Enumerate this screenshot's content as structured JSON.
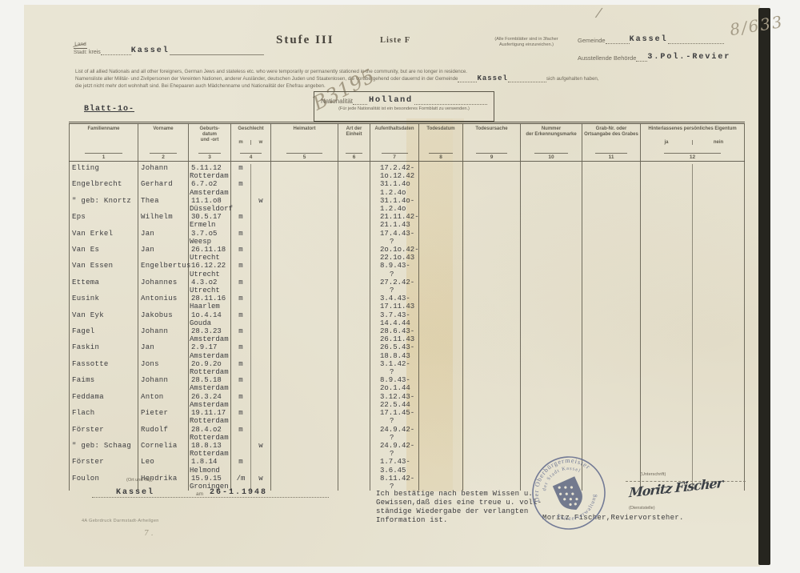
{
  "scan": {
    "archive_number": "8/633",
    "pencil_note": "B3195",
    "pencil_tick": "/",
    "pencil_small_mark": "7 ."
  },
  "header": {
    "land_label": "Land",
    "stadt_label": "Stadt:",
    "kreis_label": "kreis",
    "kreis_value": "Kassel",
    "title": "Stufe III",
    "liste_label": "Liste F",
    "copy_note_line1": "(Alle Formblätter sind in 3facher",
    "copy_note_line2": "Ausfertigung einzureichen.)",
    "gemeinde_label": "Gemeinde",
    "gemeinde_value": "Kassel",
    "behoerde_label": "Ausstellende Behörde",
    "behoerde_value": "3.Pol.-Revier"
  },
  "intro": {
    "line_en": "List of all allied Nationals and all other foreigners, German Jews and stateless etc. who were temporarily or permanently stationed in the community, but are no longer in residence.",
    "line_de_a": "Namensliste aller Militär- und Zivilpersonen der Vereinten Nationen, anderer Ausländer, deutschen Juden und Staatenlosen, die vorübergehend oder dauernd in der Gemeinde",
    "line_de_value": "Kassel",
    "line_de_b": "sich aufgehalten haben,",
    "line_de_c": "die jetzt nicht mehr dort wohnhaft sind. Bei Ehepaaren auch Mädchenname und Nationalität der Ehefrau angeben."
  },
  "blatt_label": "Blatt-1o-",
  "nationality_box": {
    "label": "Nationalität",
    "value": "Holland",
    "note": "(Für jede Nationalität ist ein besonderes Formblatt zu verwenden.)"
  },
  "table": {
    "columns": [
      {
        "label": "Familienname",
        "num": "1"
      },
      {
        "label": "Vorname",
        "num": "2"
      },
      {
        "label": "Geburts-\ndatum\nund -ort",
        "num": "3"
      },
      {
        "label": "Geschlecht",
        "num": "4",
        "sub": [
          "m",
          "w"
        ]
      },
      {
        "label": "Heimatort",
        "num": "5"
      },
      {
        "label": "Art der Einheit",
        "num": "6"
      },
      {
        "label": "Aufenthaltsdaten",
        "num": "7"
      },
      {
        "label": "Todesdatum",
        "num": "8"
      },
      {
        "label": "Todesursache",
        "num": "9"
      },
      {
        "label": "Nummer\nder Erkennungsmarke",
        "num": "10"
      },
      {
        "label": "Grab-Nr. oder\nOrtsangabe des Grabes",
        "num": "11"
      },
      {
        "label": "Hinterlassenes persönliches Eigentum",
        "num": "12",
        "sub": [
          "ja",
          "nein"
        ]
      }
    ],
    "rows": [
      {
        "name": "Elting",
        "vorname": "Johann",
        "geb_datum": "5.11.12",
        "geb_ort": "Rotterdam",
        "m": "m",
        "w": "",
        "von": "17.2.42-",
        "bis": "1o.12.42"
      },
      {
        "name": "Engelbrecht",
        "vorname": "Gerhard",
        "geb_datum": "6.7.o2",
        "geb_ort": "Amsterdam",
        "m": "m",
        "w": "",
        "von": "31.1.4o",
        "bis": "1.2.4o"
      },
      {
        "name": "\" geb: Knortz",
        "vorname": "Thea",
        "geb_datum": "11.1.o8",
        "geb_ort": "Düsseldorf",
        "m": "",
        "w": "w",
        "von": "31.1.4o-",
        "bis": "1.2.4o"
      },
      {
        "name": "Eps",
        "vorname": "Wilhelm",
        "geb_datum": "30.5.17",
        "geb_ort": "Ermeln",
        "m": "m",
        "w": "",
        "von": "21.11.42-",
        "bis": "21.1.43"
      },
      {
        "name": "Van Erkel",
        "vorname": "Jan",
        "geb_datum": "3.7.o5",
        "geb_ort": "Weesp",
        "m": "m",
        "w": "",
        "von": "17.4.43-",
        "bis": "?"
      },
      {
        "name": "Van Es",
        "vorname": "Jan",
        "geb_datum": "26.11.18",
        "geb_ort": "Utrecht",
        "m": "m",
        "w": "",
        "von": "2o.1o.42-",
        "bis": "22.1o.43"
      },
      {
        "name": "Van Essen",
        "vorname": "Engelbertus",
        "geb_datum": "16.12.22",
        "geb_ort": "Utrecht",
        "m": "m",
        "w": "",
        "von": "8.9.43-",
        "bis": "?"
      },
      {
        "name": "Ettema",
        "vorname": "Johannes",
        "geb_datum": "4.3.o2",
        "geb_ort": "Utrecht",
        "m": "m",
        "w": "",
        "von": "27.2.42-",
        "bis": "?"
      },
      {
        "name": "Eusink",
        "vorname": "Antonius",
        "geb_datum": "28.11.16",
        "geb_ort": "Haarlem",
        "m": "m",
        "w": "",
        "von": "3.4.43-",
        "bis": "17.11.43"
      },
      {
        "name": "Van Eyk",
        "vorname": "Jakobus",
        "geb_datum": "1o.4.14",
        "geb_ort": "Gouda",
        "m": "m",
        "w": "",
        "von": "3.7.43-",
        "bis": "14.4.44"
      },
      {
        "name": "Fagel",
        "vorname": "Johann",
        "geb_datum": "28.3.23",
        "geb_ort": "Amsterdam",
        "m": "m",
        "w": "",
        "von": "28.6.43-",
        "bis": "26.11.43"
      },
      {
        "name": "Faskin",
        "vorname": "Jan",
        "geb_datum": "2.9.17",
        "geb_ort": "Amsterdam",
        "m": "m",
        "w": "",
        "von": "26.5.43-",
        "bis": "18.8.43"
      },
      {
        "name": "Fassotte",
        "vorname": "Jons",
        "geb_datum": "2o.9.2o",
        "geb_ort": "Rotterdam",
        "m": "m",
        "w": "",
        "von": "3.1.42-",
        "bis": "?"
      },
      {
        "name": "Faims",
        "vorname": "Johann",
        "geb_datum": "28.5.18",
        "geb_ort": "Amsterdam",
        "m": "m",
        "w": "",
        "von": "8.9.43-",
        "bis": "2o.1.44"
      },
      {
        "name": "Feddama",
        "vorname": "Anton",
        "geb_datum": "26.3.24",
        "geb_ort": "Amsterdam",
        "m": "m",
        "w": "",
        "von": "3.12.43-",
        "bis": "22.5.44"
      },
      {
        "name": "Flach",
        "vorname": "Pieter",
        "geb_datum": "19.11.17",
        "geb_ort": "Rotterdam",
        "m": "m",
        "w": "",
        "von": "17.1.45-",
        "bis": "?"
      },
      {
        "name": "Förster",
        "vorname": "Rudolf",
        "geb_datum": "28.4.o2",
        "geb_ort": "Rotterdam",
        "m": "m",
        "w": "",
        "von": "24.9.42-",
        "bis": "?"
      },
      {
        "name": "\" geb: Schaag",
        "vorname": "Cornelia",
        "geb_datum": "18.8.13",
        "geb_ort": "Rotterdam",
        "m": "",
        "w": "w",
        "von": "24.9.42-",
        "bis": "?"
      },
      {
        "name": "Förster",
        "vorname": "Leo",
        "geb_datum": "1.8.14",
        "geb_ort": "Helmond",
        "m": "m",
        "w": "",
        "von": "1.7.43-",
        "bis": "3.6.45"
      },
      {
        "name": "Foulon",
        "vorname": "Hendrika",
        "geb_datum": "15.9.15",
        "geb_ort": "Groningen",
        "m": "/m",
        "w": "w",
        "von": "8.11.42-",
        "bis": "?"
      }
    ]
  },
  "footer": {
    "ort_datum_note": "(Ort und Tag)",
    "ort_value": "Kassel",
    "am_label": "am",
    "datum_value": "26-1.1948",
    "confirmation_lines": [
      "Ich bestätige nach bestem Wissen u.",
      "Gewissen,daß dies eine treue u. voll-",
      "ständige Wiedergabe der verlangten",
      "Information ist."
    ],
    "official_typed": "Moritz Fischer,Reviervorsteher.",
    "signature": "Moritz Fischer",
    "signature_note_top": "(Unterschrift)",
    "signature_note_bottom": "(Dienststelle)",
    "stamp": {
      "line_outer": "Der Oberbürgermeister",
      "line_inner": "der Stadt Kassel",
      "line_bottom": "Polizeiverwaltung"
    },
    "print_imprint": "4A Gebrdruck Darmstadt-Arheilgen"
  }
}
